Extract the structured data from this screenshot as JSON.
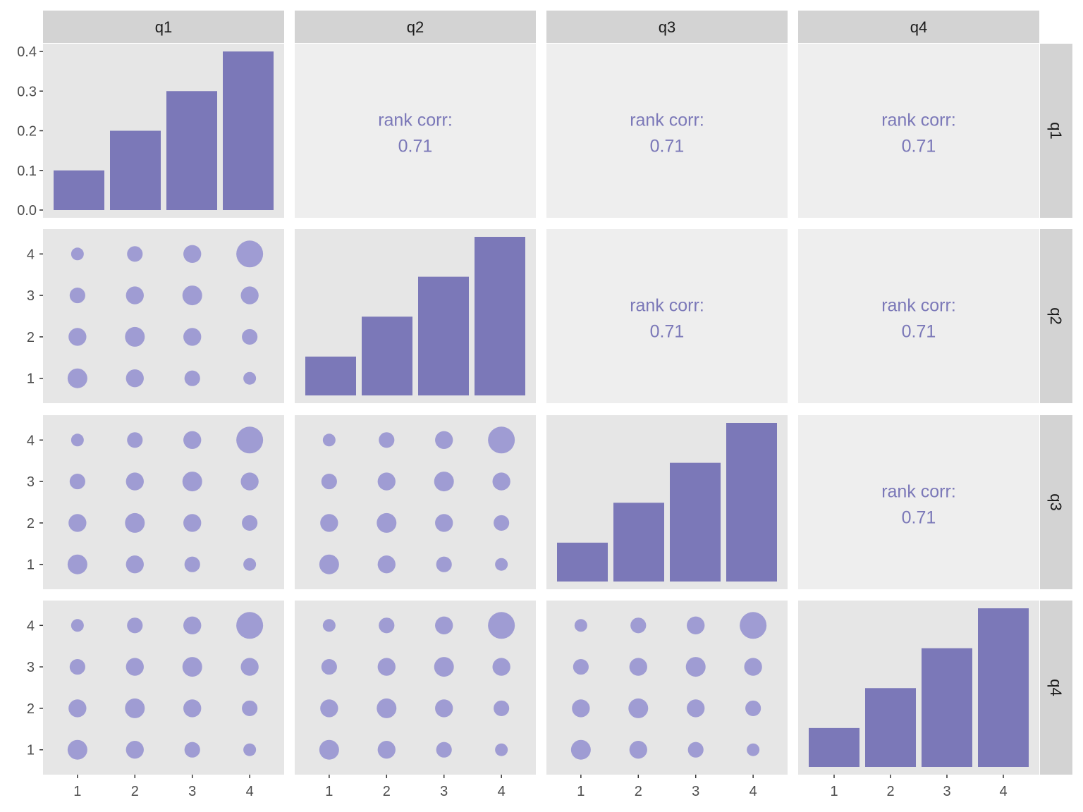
{
  "chart_data": {
    "type": "scatter",
    "variables": [
      "q1",
      "q2",
      "q3",
      "q4"
    ],
    "levels": [
      1,
      2,
      3,
      4
    ],
    "colors": {
      "bar": "#7b78b8",
      "point": "#9f9cd3",
      "corr_text": "#7b78b8",
      "panel_bg": "#e6e6e6",
      "upper_bg": "#eeeeee",
      "strip_bg": "#d3d3d3"
    },
    "diagonal": {
      "type": "bar",
      "proportions": [
        0.1,
        0.2,
        0.3,
        0.4
      ],
      "y_ticks_first_panel": [
        "0.0",
        "0.1",
        "0.2",
        "0.3",
        "0.4"
      ],
      "ylim": [
        0,
        0.4
      ]
    },
    "scatter_y_ticks": [
      "1",
      "2",
      "3",
      "4"
    ],
    "x_ticks": [
      "1",
      "2",
      "3",
      "4"
    ],
    "upper": {
      "label": "rank corr:",
      "value": "0.71"
    },
    "joint_counts": [
      [
        4,
        3,
        2,
        1
      ],
      [
        3,
        4,
        3,
        2
      ],
      [
        2,
        3,
        4,
        3
      ],
      [
        1,
        2,
        3,
        9
      ]
    ],
    "joint_counts_note": "rows = x level 1..4, cols = y level 1..4"
  }
}
